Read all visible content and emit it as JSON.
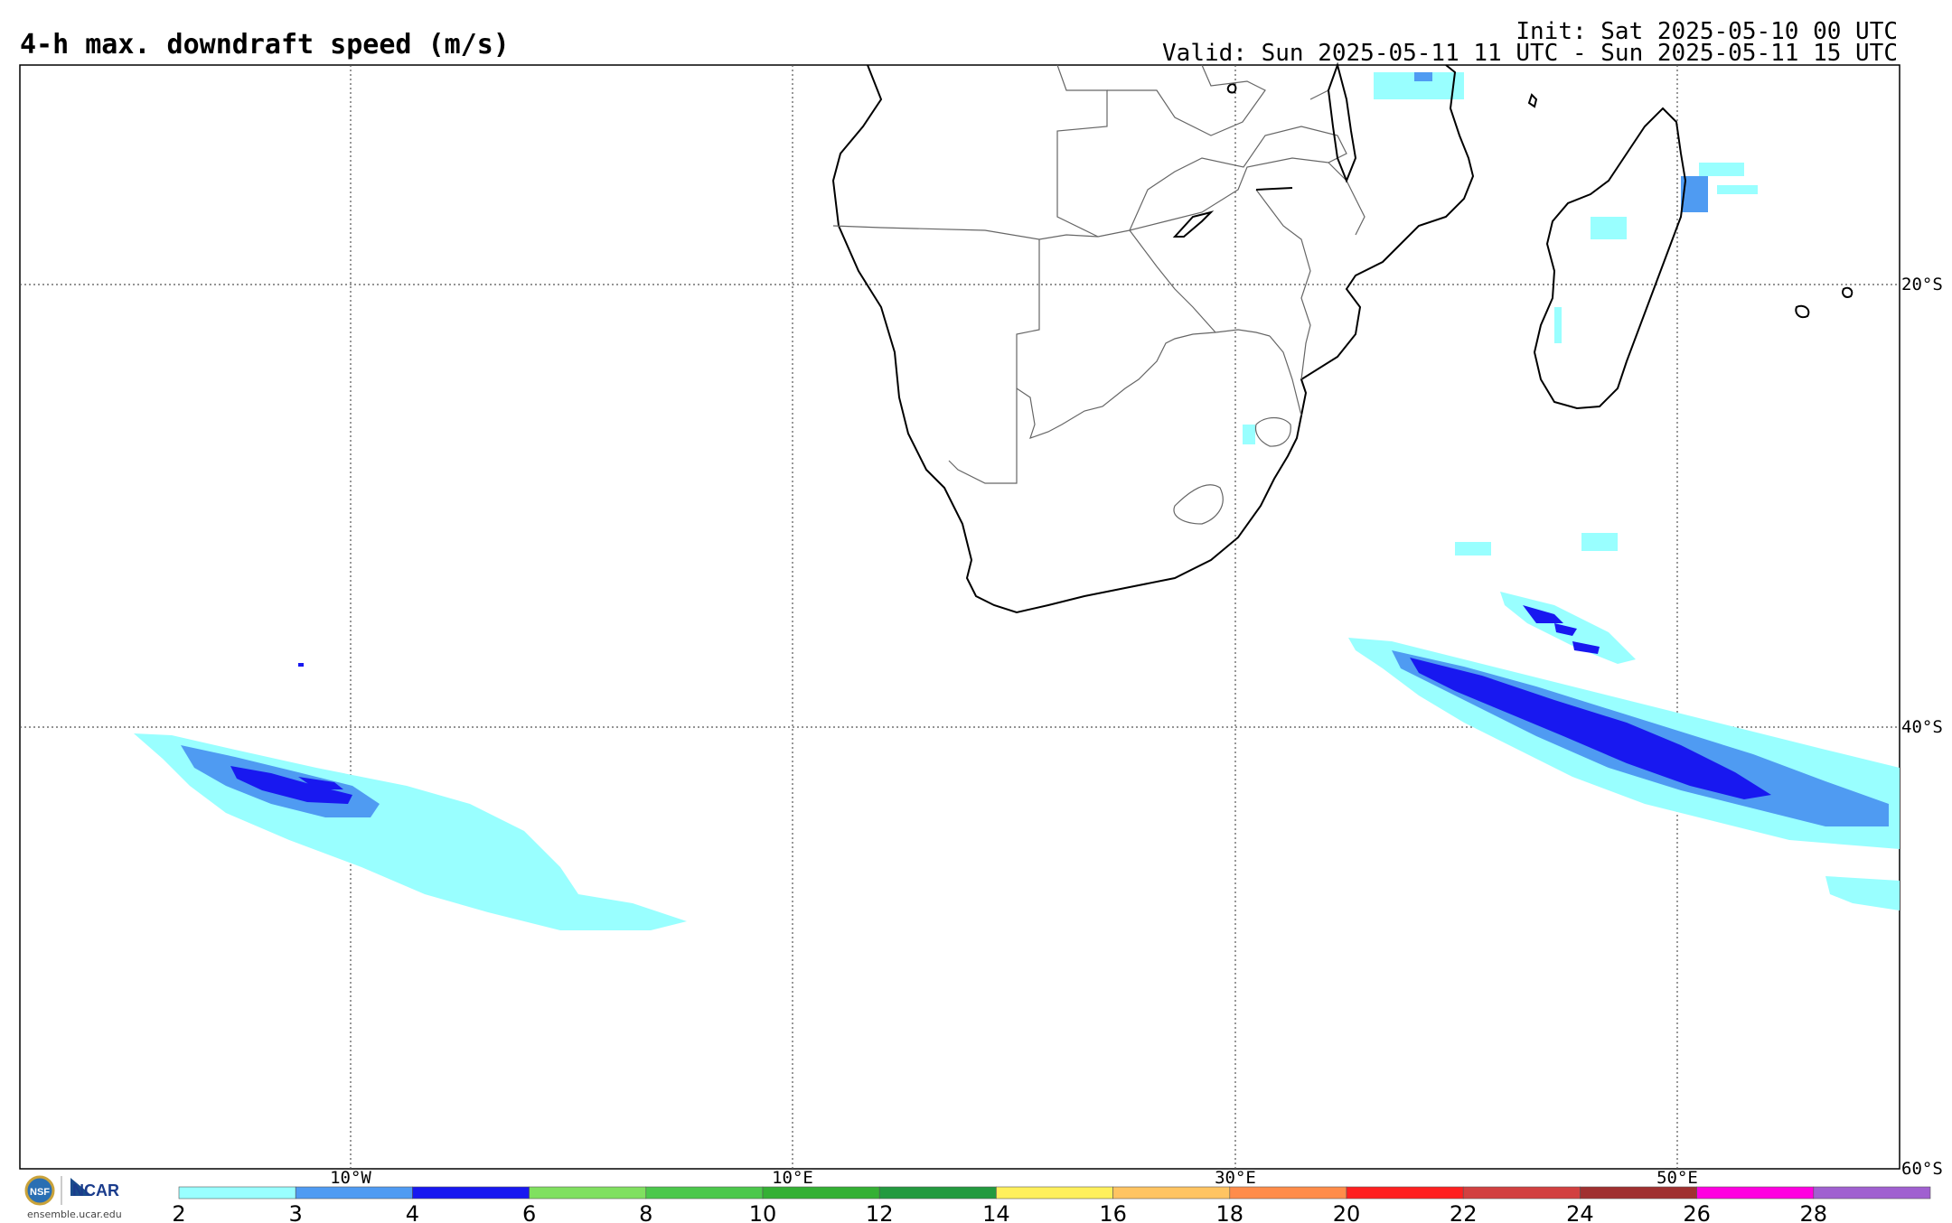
{
  "header": {
    "title": "4-h max. downdraft speed (m/s)",
    "init": "Init: Sat 2025-05-10 00 UTC",
    "valid": "Valid: Sun 2025-05-11 11 UTC - Sun 2025-05-11 15 UTC"
  },
  "map": {
    "lon_labels": [
      "10°W",
      "10°E",
      "30°E",
      "50°E"
    ],
    "lat_labels": [
      "20°S",
      "40°S",
      "60°S"
    ]
  },
  "colorbar": {
    "ticks": [
      "2",
      "3",
      "4",
      "6",
      "8",
      "10",
      "12",
      "14",
      "16",
      "18",
      "20",
      "22",
      "24",
      "26",
      "28"
    ],
    "colors": [
      "#99ffff",
      "#4f9bf2",
      "#1818f0",
      "#80e060",
      "#4cc84c",
      "#34b034",
      "#239a3f",
      "#fff05c",
      "#ffc462",
      "#ff8c4a",
      "#ff2020",
      "#d24040",
      "#a03030",
      "#ff00e0",
      "#a060d0"
    ]
  },
  "footer": {
    "logo_text": "NCAR",
    "site": "ensemble.ucar.edu"
  }
}
